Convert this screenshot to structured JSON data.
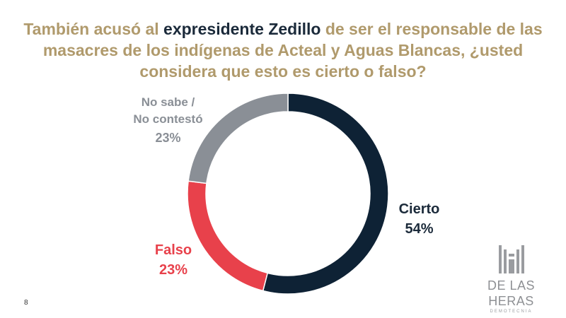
{
  "title": {
    "part1": "También acusó al ",
    "highlight": "expresidente Zedillo",
    "part2": " de ser el responsable de las masacres de los indígenas de Acteal y Aguas Blancas, ¿usted considera que esto es cierto o falso?"
  },
  "chart_data": {
    "type": "pie",
    "donut": true,
    "start": "top",
    "direction": "clockwise",
    "slices": [
      {
        "label": "Cierto",
        "value": 54,
        "display": "54%",
        "color": "#0e2235"
      },
      {
        "label": "Falso",
        "value": 23,
        "display": "23%",
        "color": "#e8414b"
      },
      {
        "label_line1": "No sabe /",
        "label_line2": "No contestó",
        "value": 23,
        "display": "23%",
        "color": "#8a8f96"
      }
    ]
  },
  "page_number": "8",
  "logo": {
    "name": "DE LAS HERAS",
    "subtitle": "DEMOTECNIA"
  }
}
